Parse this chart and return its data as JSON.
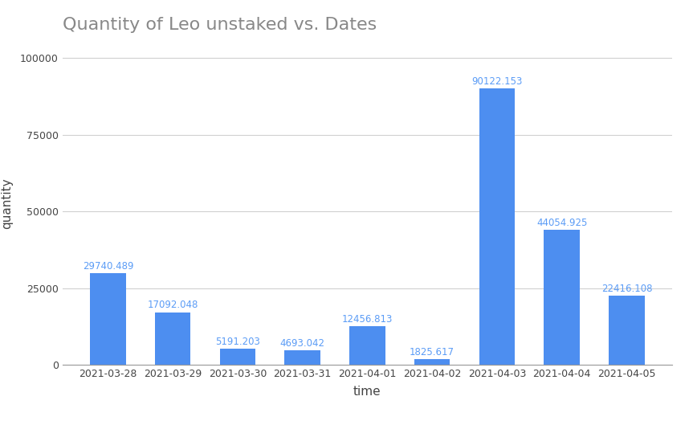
{
  "title": "Quantity of Leo unstaked vs. Dates",
  "xlabel": "time",
  "ylabel": "quantity",
  "categories": [
    "2021-03-28",
    "2021-03-29",
    "2021-03-30",
    "2021-03-31",
    "2021-04-01",
    "2021-04-02",
    "2021-04-03",
    "2021-04-04",
    "2021-04-05"
  ],
  "values": [
    29740.489,
    17092.048,
    5191.203,
    4693.042,
    12456.813,
    1825.617,
    90122.153,
    44054.925,
    22416.108
  ],
  "bar_color": "#4d8ef0",
  "label_color": "#5b9cf6",
  "title_color": "#888888",
  "axis_label_color": "#444444",
  "tick_label_color": "#444444",
  "background_color": "#ffffff",
  "grid_color": "#d0d0d0",
  "ylim": [
    0,
    105000
  ],
  "yticks": [
    0,
    25000,
    50000,
    75000,
    100000
  ],
  "title_fontsize": 16,
  "axis_label_fontsize": 11,
  "tick_fontsize": 9,
  "bar_label_fontsize": 8.5
}
